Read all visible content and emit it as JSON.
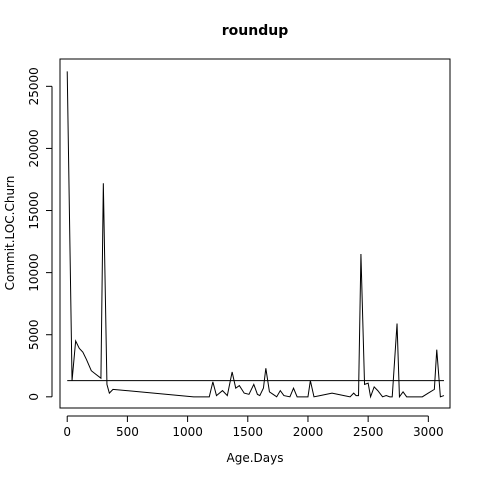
{
  "chart_data": {
    "type": "line",
    "title": "roundup",
    "xlabel": "Age.Days",
    "ylabel": "Commit.LOC.Churn",
    "xlim": [
      -60,
      3180
    ],
    "ylim": [
      -900,
      27200
    ],
    "xticks": [
      0,
      500,
      1000,
      1500,
      2000,
      2500,
      3000
    ],
    "yticks": [
      0,
      5000,
      10000,
      15000,
      20000,
      25000
    ],
    "grid": false,
    "reference_line": {
      "y": 1300,
      "x_range": [
        0,
        3130
      ]
    },
    "series": [
      {
        "x": [
          0,
          40,
          70,
          100,
          130,
          160,
          200,
          240,
          280,
          300,
          330,
          350,
          380,
          1050,
          1100,
          1180,
          1210,
          1240,
          1290,
          1330,
          1370,
          1400,
          1430,
          1470,
          1510,
          1550,
          1580,
          1600,
          1630,
          1650,
          1680,
          1710,
          1740,
          1770,
          1800,
          1850,
          1880,
          1910,
          1950,
          2000,
          2020,
          2050,
          2100,
          2150,
          2200,
          2250,
          2300,
          2350,
          2380,
          2400,
          2420,
          2440,
          2470,
          2500,
          2520,
          2550,
          2580,
          2620,
          2650,
          2680,
          2700,
          2740,
          2760,
          2790,
          2820,
          2860,
          2900,
          2950,
          3000,
          3050,
          3070,
          3100,
          3130
        ],
        "y": [
          26200,
          1300,
          4500,
          3900,
          3600,
          3000,
          2100,
          1800,
          1500,
          17200,
          1000,
          300,
          600,
          0,
          0,
          0,
          1200,
          100,
          500,
          100,
          2000,
          700,
          900,
          300,
          200,
          1000,
          200,
          100,
          700,
          2300,
          400,
          200,
          0,
          500,
          100,
          0,
          700,
          0,
          0,
          0,
          1300,
          0,
          100,
          200,
          300,
          200,
          100,
          0,
          300,
          100,
          100,
          11500,
          1000,
          1100,
          0,
          800,
          500,
          0,
          100,
          0,
          0,
          5900,
          0,
          400,
          0,
          0,
          0,
          0,
          300,
          600,
          3800,
          0,
          100
        ]
      }
    ]
  }
}
